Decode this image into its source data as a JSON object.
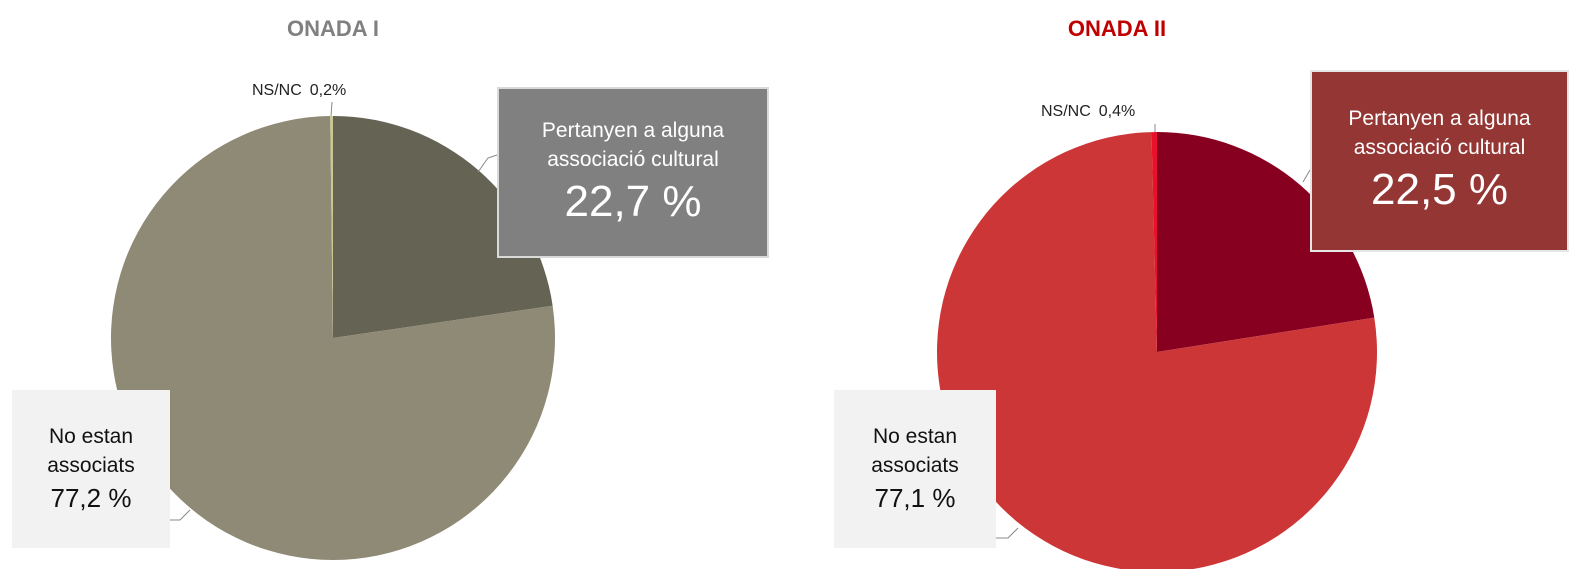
{
  "chart_data": [
    {
      "type": "pie",
      "title": "ONADA I",
      "categories": [
        "Pertanyen a alguna associació cultural",
        "No estan associats",
        "NS/NC"
      ],
      "values": [
        22.7,
        77.2,
        0.2
      ],
      "value_labels": [
        "22,7 %",
        "77,2 %",
        "0,2%"
      ],
      "colors": [
        "#656353",
        "#8f8a75",
        "#c8c890"
      ]
    },
    {
      "type": "pie",
      "title": "ONADA II",
      "categories": [
        "Pertanyen a alguna associació cultural",
        "No estan associats",
        "NS/NC"
      ],
      "values": [
        22.5,
        77.1,
        0.4
      ],
      "value_labels": [
        "22,5 %",
        "77,1 %",
        "0,4%"
      ],
      "colors": [
        "#87001f",
        "#cc3636",
        "#e8102a"
      ]
    }
  ]
}
